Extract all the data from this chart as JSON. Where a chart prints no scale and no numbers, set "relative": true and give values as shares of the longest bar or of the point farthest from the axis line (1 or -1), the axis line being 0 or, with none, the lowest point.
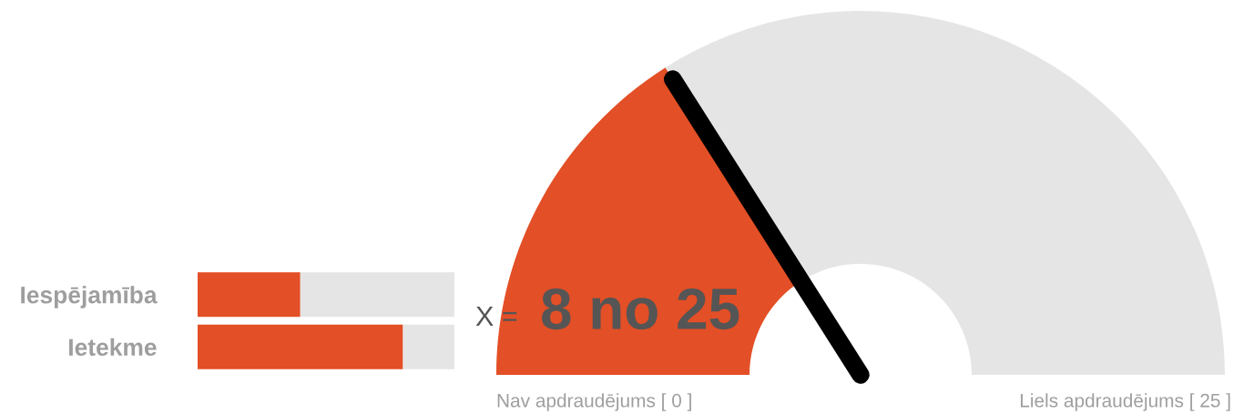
{
  "chart_data": [
    {
      "type": "bar",
      "orientation": "horizontal",
      "stacked": true,
      "relative": true,
      "categories": [
        "Iespējamība",
        "Ietekme"
      ],
      "series": [
        {
          "color": "#e34f26",
          "values": [
            0.4,
            0.8
          ]
        },
        {
          "color": "#e5e5e5",
          "values": [
            0.6,
            0.2
          ]
        }
      ]
    },
    {
      "type": "donut",
      "categories": [
        null,
        null
      ],
      "values": [
        32,
        68
      ],
      "colors": [
        "#e34f26",
        "#e5e5e5"
      ],
      "annotations": [
        "X =",
        "8 no 25",
        "Nav apdraudējums [ 0 ]",
        "Liels apdraudējums [ 25 ]"
      ]
    }
  ]
}
